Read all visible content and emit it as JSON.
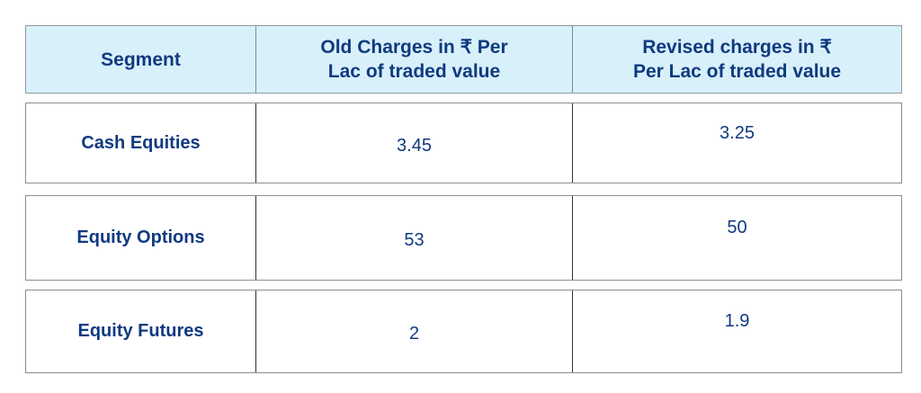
{
  "colors": {
    "header_bg": "#d8f0fa",
    "text_navy": "#103a80",
    "outer_border_gray": "#8d8d8d",
    "inner_border_dark": "#333333",
    "header_border": "#8f9aa1"
  },
  "header": {
    "segment": "Segment",
    "old_line1": "Old Charges in ₹ Per",
    "old_line2": "Lac of traded value",
    "revised_line1": "Revised charges in ₹",
    "revised_line2": "Per Lac of traded value"
  },
  "rows": [
    {
      "segment": "Cash Equities",
      "old": "3.45",
      "revised": "3.25"
    },
    {
      "segment": "Equity Options",
      "old": "53",
      "revised": "50"
    },
    {
      "segment": "Equity Futures",
      "old": "2",
      "revised": "1.9"
    }
  ],
  "chart_data": {
    "type": "table",
    "columns": [
      "Segment",
      "Old Charges in ₹ Per Lac of traded value",
      "Revised charges in ₹ Per Lac of traded value"
    ],
    "rows": [
      [
        "Cash Equities",
        3.45,
        3.25
      ],
      [
        "Equity Options",
        53,
        50
      ],
      [
        "Equity Futures",
        2,
        1.9
      ]
    ]
  }
}
